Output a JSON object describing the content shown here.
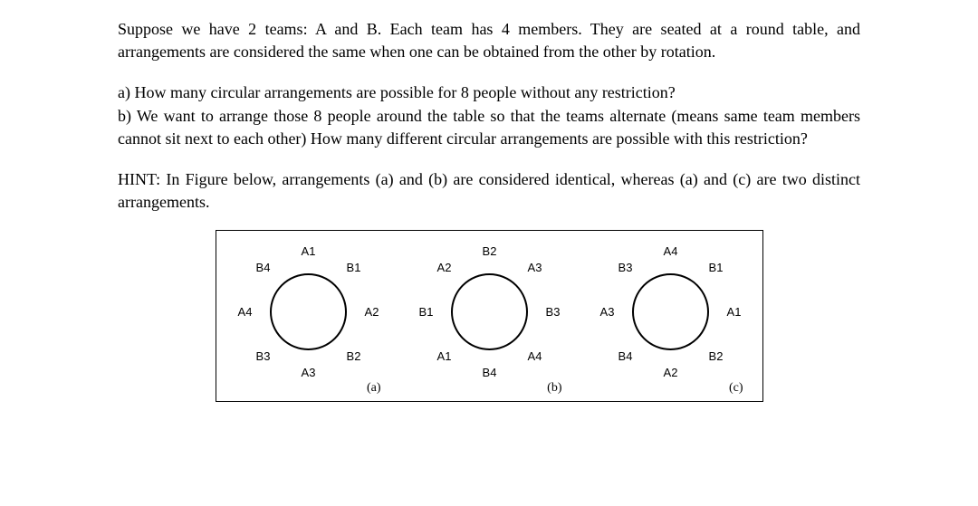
{
  "intro": "Suppose we have 2 teams: A and B. Each team has 4 members. They are seated at a round table, and arrangements are considered the same when one can be obtained from the other by rotation.",
  "part_a": "a) How many circular arrangements are possible for 8 people without any restriction?",
  "part_b": "b) We want to arrange those 8 people around the table so that the teams alternate (means same team members cannot sit next to each other) How many different circular arrangements are possible with this restriction?",
  "hint": "HINT: In Figure below, arrangements (a) and (b) are considered identical, whereas (a) and (c) are two distinct arrangements.",
  "arrangements": [
    {
      "sublabel": "(a)",
      "positions": [
        "A1",
        "B1",
        "A2",
        "B2",
        "A3",
        "B3",
        "A4",
        "B4"
      ]
    },
    {
      "sublabel": "(b)",
      "positions": [
        "B2",
        "A3",
        "B3",
        "A4",
        "B4",
        "A1",
        "B1",
        "A2"
      ]
    },
    {
      "sublabel": "(c)",
      "positions": [
        "A4",
        "B1",
        "A1",
        "B2",
        "A2",
        "B4",
        "A3",
        "B3"
      ]
    }
  ]
}
